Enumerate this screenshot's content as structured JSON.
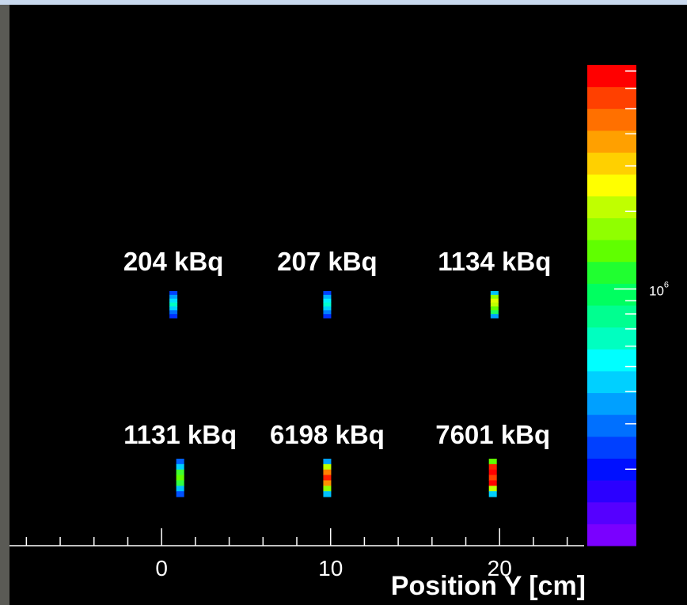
{
  "chart_data": {
    "type": "heatmap",
    "x_label": "Position Y [cm]",
    "xlim": [
      -9,
      25
    ],
    "xticks": [
      0,
      10,
      20
    ],
    "xminorticks": [
      -8,
      -6,
      -4,
      -2,
      2,
      4,
      6,
      8,
      12,
      14,
      16,
      18,
      22,
      24
    ],
    "zlim": [
      101000,
      7400000
    ],
    "zlog": true,
    "zticks": [
      {
        "value": 1000000,
        "label": "10",
        "exponent": "6"
      }
    ],
    "zminorticks": [
      200000,
      300000,
      400000,
      500000,
      600000,
      700000,
      800000,
      900000,
      2000000,
      3000000,
      4000000,
      5000000,
      6000000,
      7000000
    ],
    "colorbar_colors": [
      "#7a00ff",
      "#5500ff",
      "#2b00ff",
      "#0010ff",
      "#0040ff",
      "#0070ff",
      "#00a0ff",
      "#00d0ff",
      "#00ffff",
      "#00ffc0",
      "#00ff90",
      "#00ff60",
      "#20ff30",
      "#60ff00",
      "#90ff00",
      "#c0ff00",
      "#ffff00",
      "#ffd000",
      "#ffa000",
      "#ff7000",
      "#ff4000",
      "#ff0000"
    ],
    "sources": [
      {
        "label": "204 kBq",
        "x": 0.7,
        "row": 0,
        "colors": [
          "#0040ff",
          "#00a0ff",
          "#00e0ff",
          "#00ffc0",
          "#00d0ff",
          "#0070ff",
          "#0030ff"
        ]
      },
      {
        "label": "207 kBq",
        "x": 9.8,
        "row": 0,
        "colors": [
          "#0040ff",
          "#00b0ff",
          "#00f0ff",
          "#00ffd0",
          "#00d0ff",
          "#0080ff",
          "#0030ff"
        ]
      },
      {
        "label": "1134 kBq",
        "x": 19.7,
        "row": 0,
        "colors": [
          "#00c0ff",
          "#90ff00",
          "#e0ff00",
          "#c0ff00",
          "#60ff00",
          "#20ff60",
          "#00a0ff"
        ]
      },
      {
        "label": "1131 kBq",
        "x": 1.1,
        "row": 1,
        "colors": [
          "#0060ff",
          "#00d0ff",
          "#40ff30",
          "#60ff00",
          "#30ff40",
          "#00c0ff",
          "#0050ff"
        ]
      },
      {
        "label": "6198 kBq",
        "x": 9.8,
        "row": 1,
        "colors": [
          "#00a0ff",
          "#c0ff00",
          "#ff8000",
          "#ff2000",
          "#ff9000",
          "#90ff00",
          "#00c0ff"
        ]
      },
      {
        "label": "7601 kBq",
        "x": 19.6,
        "row": 1,
        "colors": [
          "#60ff00",
          "#ff2000",
          "#ff0000",
          "#ff4000",
          "#ff0000",
          "#c0ff00",
          "#00d0ff"
        ]
      }
    ]
  }
}
